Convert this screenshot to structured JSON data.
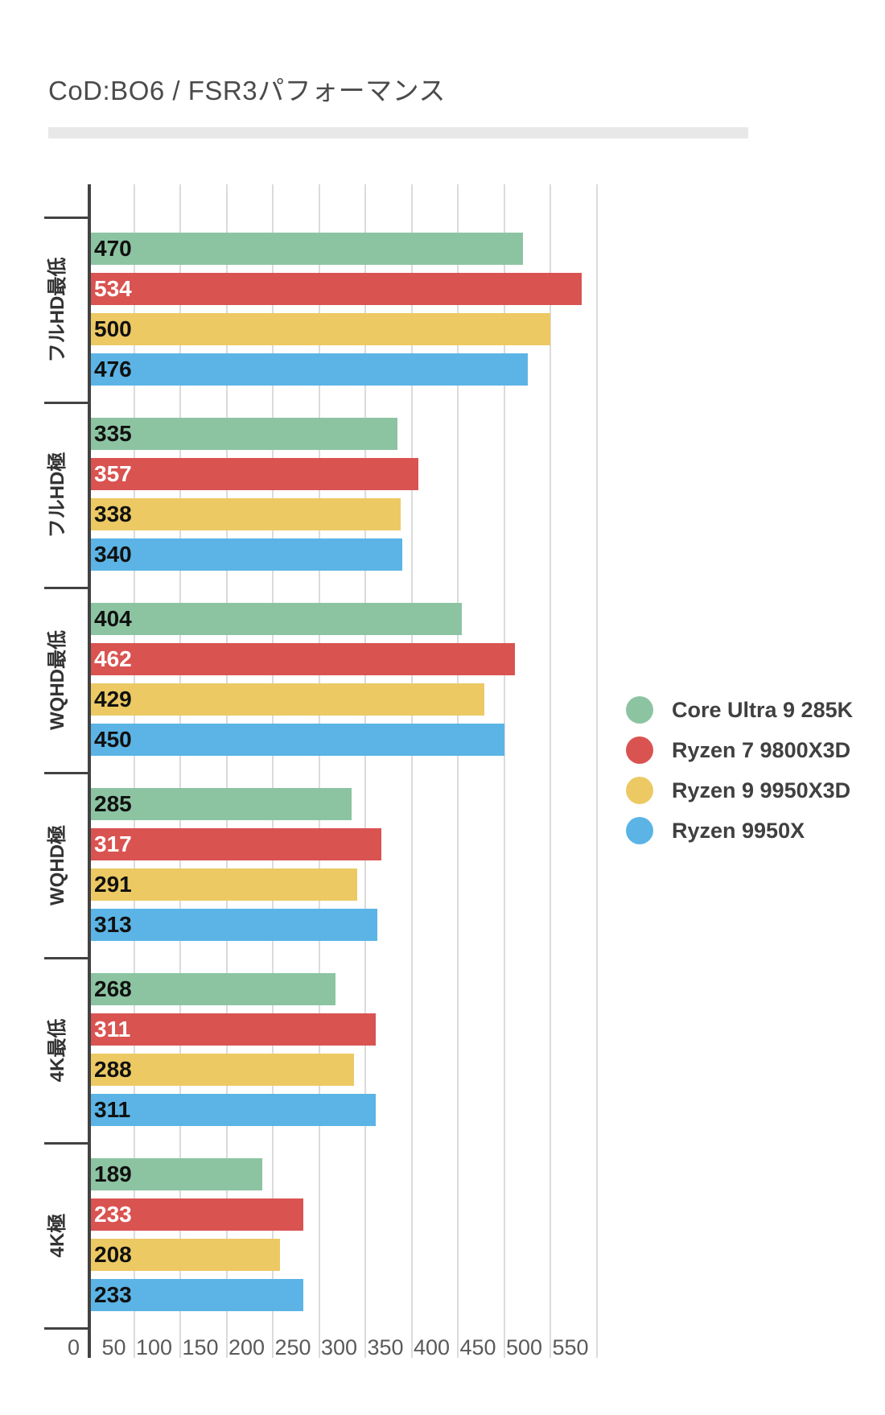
{
  "title": "CoD:BO6 / FSR3パフォーマンス",
  "colors": {
    "background": "#FFFFFF",
    "title_text": "#4B4B4B",
    "divider": "#E8E8E8",
    "axis_line": "#424242",
    "gridline": "#DBDBDB",
    "axis_tick_label": "#5A5A5A",
    "category_label": "#333333",
    "legend_text": "#404040"
  },
  "chart_data": {
    "type": "bar",
    "orientation": "horizontal",
    "title": "CoD:BO6 / FSR3パフォーマンス",
    "xlabel": "",
    "ylabel": "",
    "xlim": [
      0,
      600
    ],
    "grid": true,
    "legend_position": "right",
    "value_labels": true,
    "categories": [
      "フルHD最低",
      "フルHD極",
      "WQHD最低",
      "WQHD極",
      "4K最低",
      "4K極"
    ],
    "series": [
      {
        "name": "Core Ultra 9 285K",
        "color": "#8CC4A2",
        "label_color": "#111111",
        "values": [
          470,
          335,
          404,
          285,
          268,
          189
        ]
      },
      {
        "name": "Ryzen 7 9800X3D",
        "color": "#D95351",
        "label_color": "#FFFFFF",
        "values": [
          534,
          357,
          462,
          317,
          311,
          233
        ]
      },
      {
        "name": "Ryzen 9 9950X3D",
        "color": "#ECC963",
        "label_color": "#111111",
        "values": [
          500,
          338,
          429,
          291,
          288,
          208
        ]
      },
      {
        "name": "Ryzen 9950X",
        "color": "#5BB4E5",
        "label_color": "#111111",
        "values": [
          476,
          340,
          450,
          313,
          311,
          233
        ]
      }
    ],
    "x_ticks": [
      0,
      50,
      100,
      150,
      200,
      250,
      300,
      350,
      400,
      450,
      500,
      550
    ]
  }
}
